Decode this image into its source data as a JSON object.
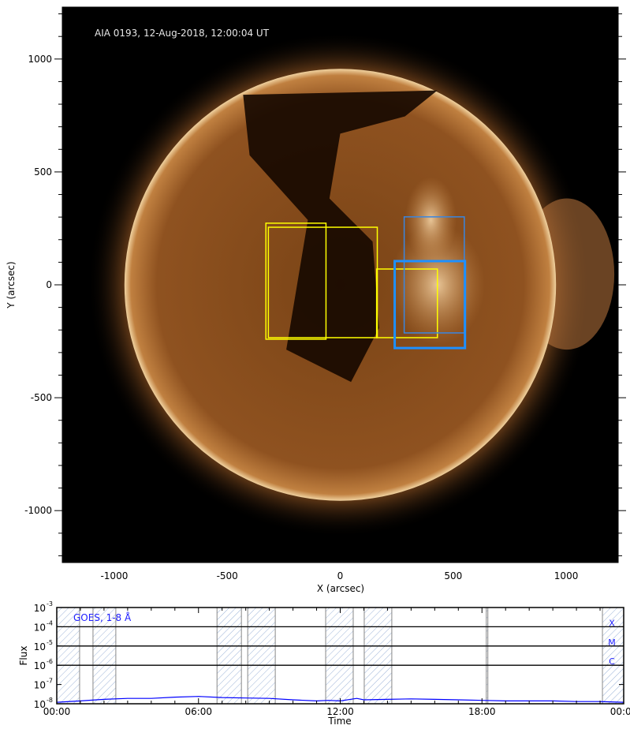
{
  "chart_data": [
    {
      "type": "image",
      "title": "AIA 0193, 12-Aug-2018, 12:00:04 UT",
      "xlabel": "X (arcsec)",
      "ylabel": "Y (arcsec)",
      "xlim": [
        -1230,
        1230
      ],
      "ylim": [
        -1230,
        1230
      ],
      "xticks": [
        -1000,
        -500,
        0,
        500,
        1000
      ],
      "yticks": [
        1000,
        500,
        0,
        -500,
        -1000
      ],
      "solar_radius_arcsec": 955,
      "colors": {
        "background": "#000000",
        "disk": "#8a4e1c",
        "limb": "#f2d6a8"
      },
      "boxes": [
        {
          "color": "#ffff00",
          "weight": "thin",
          "x": [
            -329,
            -63
          ],
          "y": [
            -241,
            273
          ]
        },
        {
          "color": "#ffff00",
          "weight": "thin",
          "x": [
            -318,
            164
          ],
          "y": [
            -234,
            255
          ]
        },
        {
          "color": "#ffff00",
          "weight": "thin",
          "x": [
            161,
            430
          ],
          "y": [
            -234,
            70
          ]
        },
        {
          "color": "#3a86e0",
          "weight": "thin",
          "x": [
            283,
            549
          ],
          "y": [
            -213,
            301
          ]
        },
        {
          "color": "#1e90ff",
          "weight": "thick",
          "x": [
            241,
            552
          ],
          "y": [
            -280,
            105
          ]
        }
      ]
    },
    {
      "type": "line",
      "xlabel": "Time",
      "ylabel": "Flux",
      "xlim_hours": [
        0,
        24
      ],
      "xticks": [
        "00:00",
        "06:00",
        "12:00",
        "18:00",
        "00:00"
      ],
      "ylim": [
        1e-08,
        0.001
      ],
      "yscale": "log",
      "ytick_labels": [
        {
          "base": "10",
          "exp": "-3"
        },
        {
          "base": "10",
          "exp": "-4"
        },
        {
          "base": "10",
          "exp": "-5"
        },
        {
          "base": "10",
          "exp": "-6"
        },
        {
          "base": "10",
          "exp": "-7"
        },
        {
          "base": "10",
          "exp": "-8"
        }
      ],
      "legend": "GOES, 1-8 Å",
      "legend_placement": "top-left",
      "line_color": "#0000ff",
      "class_levels": [
        {
          "label": "X",
          "flux": 0.0001
        },
        {
          "label": "M",
          "flux": 1e-05
        },
        {
          "label": "C",
          "flux": 1e-06
        }
      ],
      "hatched_intervals": [
        [
          "00:00",
          "00:58"
        ],
        [
          "01:32",
          "02:30"
        ],
        [
          "06:47",
          "07:49"
        ],
        [
          "08:05",
          "09:15"
        ],
        [
          "11:23",
          "12:33"
        ],
        [
          "13:01",
          "14:11"
        ],
        [
          "18:11",
          "18:15"
        ],
        [
          "23:06",
          "24:00"
        ]
      ],
      "series": [
        {
          "x_hours": [
            0,
            1,
            2,
            3,
            4,
            5,
            6,
            7,
            8,
            9,
            10,
            11,
            11.5,
            12,
            12.7,
            13,
            14,
            15,
            16,
            17,
            18,
            19,
            20,
            21,
            22,
            23,
            24
          ],
          "flux": [
            1.2e-08,
            1.4e-08,
            1.7e-08,
            1.9e-08,
            1.9e-08,
            2.2e-08,
            2.4e-08,
            2.1e-08,
            2e-08,
            1.9e-08,
            1.6e-08,
            1.4e-08,
            1.5e-08,
            1.4e-08,
            1.9e-08,
            1.6e-08,
            1.7e-08,
            1.8e-08,
            1.7e-08,
            1.6e-08,
            1.5e-08,
            1.4e-08,
            1.4e-08,
            1.4e-08,
            1.3e-08,
            1.3e-08,
            1.2e-08
          ]
        }
      ]
    }
  ]
}
